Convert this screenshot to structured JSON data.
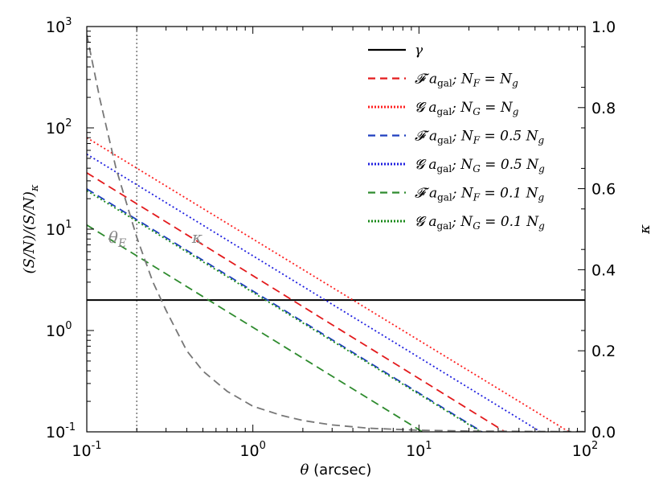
{
  "chart_data": {
    "type": "line",
    "xlabel": "θ (arcsec)",
    "ylabel_left": "(S/N)/(S/N)κ",
    "ylabel_right": "κ",
    "xscale": "log",
    "yscale_left": "log",
    "xlim": [
      0.1,
      100
    ],
    "ylim_left": [
      0.1,
      1000
    ],
    "ylim_right": [
      0.0,
      1.0
    ],
    "x_ticks": [
      {
        "value": 0.1,
        "base": "10",
        "exp": "-1"
      },
      {
        "value": 1,
        "base": "10",
        "exp": "0"
      },
      {
        "value": 10,
        "base": "10",
        "exp": "1"
      },
      {
        "value": 100,
        "base": "10",
        "exp": "2"
      }
    ],
    "y_ticks_left": [
      {
        "value": 0.1,
        "base": "10",
        "exp": "-1"
      },
      {
        "value": 1,
        "base": "10",
        "exp": "0"
      },
      {
        "value": 10,
        "base": "10",
        "exp": "1"
      },
      {
        "value": 100,
        "base": "10",
        "exp": "2"
      },
      {
        "value": 1000,
        "base": "10",
        "exp": "3"
      }
    ],
    "y_ticks_right": [
      "0.0",
      "0.2",
      "0.4",
      "0.6",
      "0.8",
      "1.0"
    ],
    "series": [
      {
        "name": "γ",
        "color": "#000000",
        "dash": "solid",
        "points": [
          [
            0.1,
            2.0
          ],
          [
            100,
            2.0
          ]
        ]
      },
      {
        "name": "𝓕 a_gal; N_F = N_g",
        "label_main": "𝓕 a",
        "label_sub": "gal",
        "label_rest": "; N",
        "label_sub2": "F",
        "label_tail": " = N",
        "label_sub3": "g",
        "color": "#e31a1c",
        "dash": "dashed",
        "points": [
          [
            0.1,
            36
          ],
          [
            33,
            0.1
          ]
        ]
      },
      {
        "name": "𝓖 a_gal; N_G = N_g",
        "label_main": "𝓖 a",
        "label_sub": "gal",
        "label_rest": "; N",
        "label_sub2": "G",
        "label_tail": " = N",
        "label_sub3": "g",
        "color": "#ff2020",
        "dash": "dotted",
        "points": [
          [
            0.1,
            80
          ],
          [
            80,
            0.1
          ]
        ]
      },
      {
        "name": "𝓕 a_gal; N_F = 0.5 N_g",
        "label_main": "𝓕 a",
        "label_sub": "gal",
        "label_rest": "; N",
        "label_sub2": "F",
        "label_tail": " = 0.5 N",
        "label_sub3": "g",
        "color": "#1f3fbf",
        "dash": "dashed",
        "points": [
          [
            0.1,
            25
          ],
          [
            24,
            0.1
          ]
        ]
      },
      {
        "name": "𝓖 a_gal; N_G = 0.5 N_g",
        "label_main": "𝓖 a",
        "label_sub": "gal",
        "label_rest": "; N",
        "label_sub2": "G",
        "label_tail": " = 0.5 N",
        "label_sub3": "g",
        "color": "#2020e0",
        "dash": "dotted",
        "points": [
          [
            0.1,
            55
          ],
          [
            54,
            0.1
          ]
        ]
      },
      {
        "name": "𝓕 a_gal; N_F = 0.1 N_g",
        "label_main": "𝓕 a",
        "label_sub": "gal",
        "label_rest": "; N",
        "label_sub2": "F",
        "label_tail": " = 0.1 N",
        "label_sub3": "g",
        "color": "#2e8b2e",
        "dash": "dashed",
        "points": [
          [
            0.1,
            11
          ],
          [
            10.5,
            0.1
          ]
        ]
      },
      {
        "name": "𝓖 a_gal; N_G = 0.1 N_g",
        "label_main": "𝓖 a",
        "label_sub": "gal",
        "label_rest": "; N",
        "label_sub2": "G",
        "label_tail": " = 0.1 N",
        "label_sub3": "g",
        "color": "#1a8a1a",
        "dash": "dotted",
        "points": [
          [
            0.1,
            24
          ],
          [
            23.5,
            0.1
          ]
        ]
      },
      {
        "name": "κ",
        "axis": "right",
        "color": "#777777",
        "dash": "dashed",
        "points": [
          [
            0.1,
            0.98
          ],
          [
            0.12,
            0.82
          ],
          [
            0.15,
            0.65
          ],
          [
            0.2,
            0.48
          ],
          [
            0.25,
            0.37
          ],
          [
            0.3,
            0.3
          ],
          [
            0.4,
            0.2
          ],
          [
            0.5,
            0.15
          ],
          [
            0.7,
            0.1
          ],
          [
            1.0,
            0.063
          ],
          [
            1.5,
            0.04
          ],
          [
            2,
            0.028
          ],
          [
            3,
            0.017
          ],
          [
            5,
            0.009
          ],
          [
            10,
            0.004
          ],
          [
            20,
            0.002
          ],
          [
            50,
            0.001
          ],
          [
            100,
            0.0005
          ]
        ]
      }
    ],
    "vline": {
      "x": 0.2,
      "color": "#777777",
      "style": "dotted"
    },
    "annotations": {
      "theta_e": {
        "text": "θ",
        "sub": "E",
        "x": 0.135,
        "y": 0.7
      },
      "kappa": {
        "text": "κ",
        "x": 0.43,
        "y": 0.7
      }
    },
    "legend_location": "top-right",
    "grid": false
  }
}
